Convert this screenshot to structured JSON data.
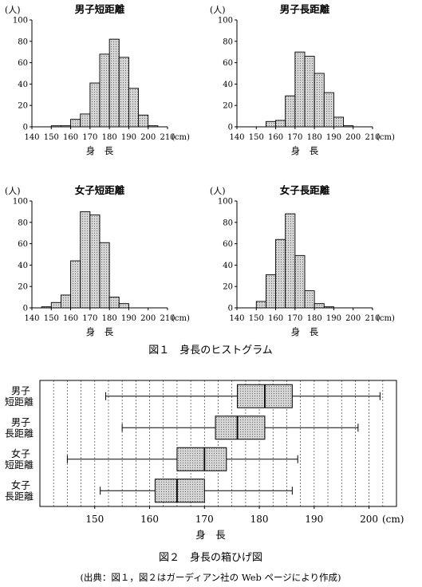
{
  "figure1": {
    "caption": "図１　身長のヒストグラム",
    "x_label": "身　長",
    "x_unit": "(cm)",
    "y_unit": "(人)",
    "x_ticks": [
      140,
      150,
      160,
      170,
      180,
      190,
      200,
      210
    ],
    "y_ticks": [
      0,
      20,
      40,
      60,
      80,
      100
    ]
  },
  "figure2": {
    "caption": "図２　身長の箱ひげ図",
    "x_label": "身　長",
    "x_unit": "(cm)",
    "x_ticks": [
      150,
      160,
      170,
      180,
      190,
      200
    ]
  },
  "source_note": "(出典：図１，図２はガーディアン社の Web ページにより作成)",
  "chart_data": [
    {
      "type": "bar",
      "title": "男子短距離",
      "xlabel": "身　長",
      "ylabel": "(人)",
      "bin_width": 5,
      "categories": [
        150,
        155,
        160,
        165,
        170,
        175,
        180,
        185,
        190,
        195,
        200
      ],
      "values": [
        1,
        1,
        7,
        12,
        41,
        68,
        82,
        65,
        36,
        11,
        1
      ],
      "xlim": [
        140,
        210
      ],
      "ylim": [
        0,
        100
      ]
    },
    {
      "type": "bar",
      "title": "男子長距離",
      "xlabel": "身　長",
      "ylabel": "(人)",
      "bin_width": 5,
      "categories": [
        155,
        160,
        165,
        170,
        175,
        180,
        185,
        190,
        195
      ],
      "values": [
        5,
        6,
        29,
        70,
        66,
        50,
        32,
        9,
        1
      ],
      "xlim": [
        140,
        210
      ],
      "ylim": [
        0,
        100
      ]
    },
    {
      "type": "bar",
      "title": "女子短距離",
      "xlabel": "身　長",
      "ylabel": "(人)",
      "bin_width": 5,
      "categories": [
        145,
        150,
        155,
        160,
        165,
        170,
        175,
        180,
        185
      ],
      "values": [
        1,
        5,
        12,
        44,
        90,
        87,
        61,
        10,
        4
      ],
      "xlim": [
        140,
        210
      ],
      "ylim": [
        0,
        100
      ]
    },
    {
      "type": "bar",
      "title": "女子長距離",
      "xlabel": "身　長",
      "ylabel": "(人)",
      "bin_width": 5,
      "categories": [
        150,
        155,
        160,
        165,
        170,
        175,
        180,
        185
      ],
      "values": [
        6,
        31,
        64,
        88,
        49,
        16,
        4,
        1
      ],
      "xlim": [
        140,
        210
      ],
      "ylim": [
        0,
        100
      ]
    },
    {
      "type": "box",
      "xlabel": "身　長",
      "xlim": [
        140,
        205
      ],
      "grid": true,
      "series": [
        {
          "name": "男子\n短距離",
          "min": 152,
          "q1": 176,
          "median": 181,
          "q3": 186,
          "max": 202
        },
        {
          "name": "男子\n長距離",
          "min": 155,
          "q1": 172,
          "median": 176,
          "q3": 181,
          "max": 198
        },
        {
          "name": "女子\n短距離",
          "min": 145,
          "q1": 165,
          "median": 170,
          "q3": 174,
          "max": 187
        },
        {
          "name": "女子\n長距離",
          "min": 151,
          "q1": 161,
          "median": 165,
          "q3": 170,
          "max": 186
        }
      ]
    }
  ]
}
